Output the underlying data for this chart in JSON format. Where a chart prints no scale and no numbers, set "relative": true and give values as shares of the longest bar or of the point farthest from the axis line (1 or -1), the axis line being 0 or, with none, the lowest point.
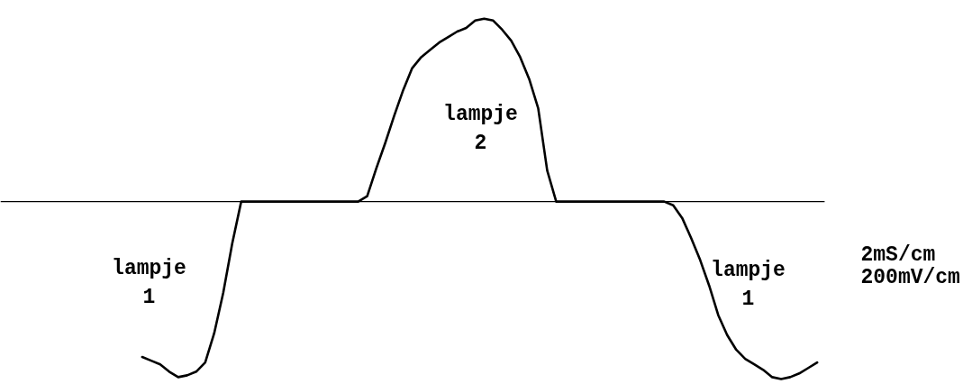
{
  "chart_data": {
    "type": "line",
    "relative": true,
    "categories": [
      null,
      null,
      null,
      null,
      null,
      null,
      null,
      null,
      null,
      null,
      null,
      null,
      null,
      null,
      null,
      null,
      null,
      null,
      null,
      null,
      null,
      null,
      null,
      null,
      null,
      null,
      null,
      null,
      null,
      null,
      null,
      null,
      null,
      null,
      null,
      null,
      null,
      null,
      null,
      null,
      null,
      null,
      null,
      null,
      null,
      null,
      null,
      null,
      null,
      null,
      null,
      null,
      null,
      null,
      null,
      null,
      null,
      null,
      null,
      null,
      null,
      null,
      null,
      null,
      null,
      null,
      null,
      null,
      null,
      null,
      null,
      null,
      null,
      null,
      null,
      null
    ],
    "series": [
      {
        "color": "#000000",
        "values": [
          -0.85,
          -0.87,
          -0.89,
          -0.93,
          -0.96,
          -0.95,
          -0.93,
          -0.88,
          -0.72,
          -0.5,
          -0.23,
          0,
          0,
          0,
          0,
          0,
          0,
          0,
          0,
          0,
          0,
          0,
          0,
          0,
          0,
          0.03,
          0.18,
          0.32,
          0.47,
          0.61,
          0.73,
          0.79,
          0.83,
          0.87,
          0.9,
          0.93,
          0.95,
          0.99,
          1.0,
          0.99,
          0.94,
          0.88,
          0.79,
          0.67,
          0.51,
          0.17,
          0,
          0,
          0,
          0,
          0,
          0,
          0,
          0,
          0,
          0,
          0,
          0,
          0,
          -0.02,
          -0.09,
          -0.2,
          -0.32,
          -0.46,
          -0.62,
          -0.73,
          -0.81,
          -0.86,
          -0.89,
          -0.92,
          -0.96,
          -0.97,
          -0.96,
          -0.94,
          -0.91,
          -0.88
        ]
      }
    ],
    "annotations": [
      "lampje\n1",
      "lampje\n2",
      "lampje\n1",
      "2mS/cm",
      "200mV/cm"
    ]
  }
}
